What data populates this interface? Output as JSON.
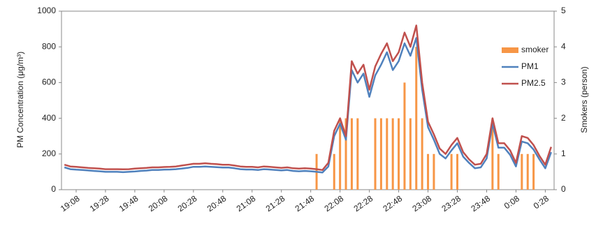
{
  "chart_data": {
    "type": "line",
    "y_label": "PM Concentration (μg/m³)",
    "y2_label": "Smokers (person)",
    "categories": [
      null,
      null,
      "19:08",
      null,
      null,
      null,
      null,
      "19:28",
      null,
      null,
      null,
      null,
      "19:48",
      null,
      null,
      null,
      null,
      "20:08",
      null,
      null,
      null,
      null,
      "20:28",
      null,
      null,
      null,
      null,
      "20:48",
      null,
      null,
      null,
      null,
      "21:08",
      null,
      null,
      null,
      null,
      "21:28",
      null,
      null,
      null,
      null,
      "21:48",
      null,
      null,
      null,
      null,
      "22:08",
      null,
      null,
      null,
      null,
      "22:28",
      null,
      null,
      null,
      null,
      "22:48",
      null,
      null,
      null,
      null,
      "23:08",
      null,
      null,
      null,
      null,
      "23:28",
      null,
      null,
      null,
      null,
      "23:48",
      null,
      null,
      null,
      null,
      "0:08",
      null,
      null,
      null,
      null,
      "0:28",
      null
    ],
    "series": [
      {
        "name": "smoker",
        "color": "#f79646",
        "axis": "y2",
        "kind": "bar",
        "values": [
          0,
          0,
          0,
          0,
          0,
          0,
          0,
          0,
          0,
          0,
          0,
          0,
          0,
          0,
          0,
          0,
          0,
          0,
          0,
          0,
          0,
          0,
          0,
          0,
          0,
          0,
          0,
          0,
          0,
          0,
          0,
          0,
          0,
          0,
          0,
          0,
          0,
          0,
          0,
          0,
          0,
          0,
          0,
          1,
          0,
          0,
          1,
          2,
          2,
          2,
          2,
          0,
          0,
          2,
          2,
          2,
          2,
          2,
          3,
          2,
          4,
          2,
          1,
          1,
          0,
          0,
          1,
          1,
          0,
          0,
          0,
          0,
          0,
          2,
          1,
          0,
          0,
          0,
          1,
          1,
          1,
          0,
          0,
          0
        ]
      },
      {
        "name": "PM1",
        "color": "#4f81bd",
        "kind": "line",
        "values": [
          125,
          115,
          112,
          110,
          108,
          105,
          103,
          100,
          100,
          100,
          98,
          100,
          102,
          105,
          107,
          110,
          110,
          112,
          113,
          115,
          118,
          122,
          128,
          128,
          130,
          128,
          126,
          124,
          124,
          120,
          115,
          113,
          113,
          110,
          115,
          113,
          110,
          108,
          110,
          105,
          103,
          105,
          103,
          100,
          96,
          130,
          300,
          370,
          280,
          670,
          600,
          650,
          520,
          640,
          700,
          770,
          670,
          720,
          820,
          750,
          850,
          560,
          350,
          280,
          200,
          175,
          220,
          260,
          185,
          150,
          120,
          125,
          175,
          370,
          235,
          235,
          195,
          130,
          270,
          260,
          225,
          170,
          120,
          210
        ]
      },
      {
        "name": "PM2.5",
        "color": "#c0504d",
        "kind": "line",
        "values": [
          140,
          130,
          128,
          125,
          122,
          120,
          118,
          115,
          115,
          115,
          114,
          115,
          118,
          120,
          122,
          125,
          125,
          127,
          128,
          130,
          135,
          140,
          145,
          145,
          148,
          145,
          143,
          140,
          140,
          135,
          130,
          128,
          128,
          125,
          130,
          128,
          125,
          122,
          125,
          120,
          118,
          120,
          118,
          115,
          110,
          150,
          330,
          400,
          300,
          720,
          650,
          700,
          560,
          690,
          760,
          820,
          720,
          770,
          880,
          800,
          920,
          600,
          380,
          310,
          230,
          200,
          250,
          290,
          210,
          170,
          140,
          145,
          200,
          400,
          260,
          260,
          220,
          150,
          300,
          290,
          250,
          190,
          140,
          240
        ]
      }
    ],
    "ylim": [
      0,
      1000
    ],
    "yticks": [
      0,
      200,
      400,
      600,
      800,
      1000
    ],
    "y2lim": [
      0,
      5
    ],
    "y2ticks": [
      0,
      1,
      2,
      3,
      4,
      5
    ],
    "legend": "right"
  }
}
